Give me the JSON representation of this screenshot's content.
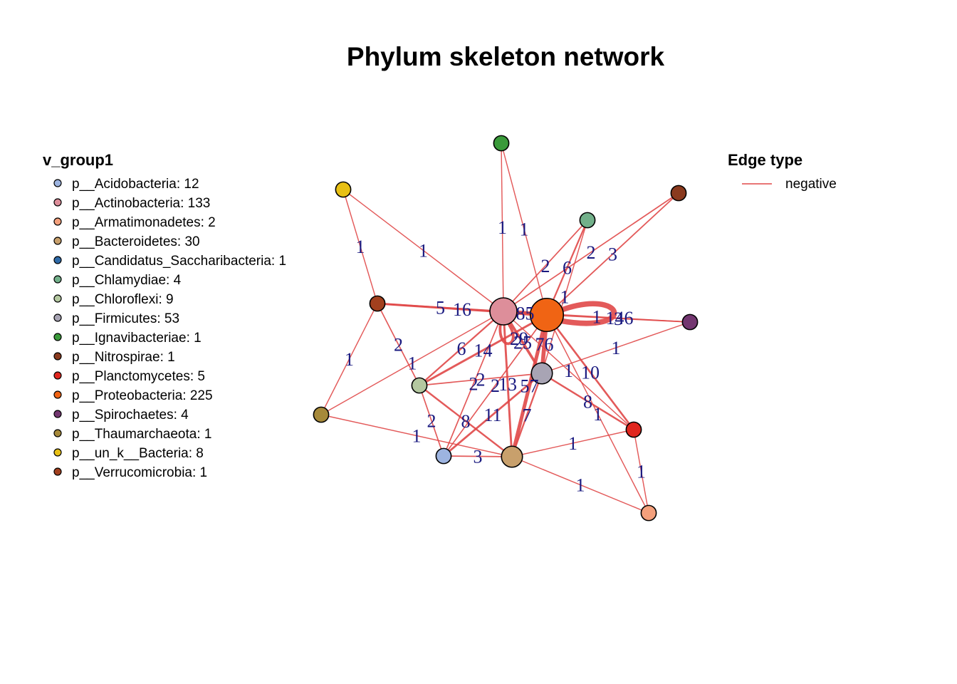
{
  "title": "Phylum skeleton network",
  "node_legend": {
    "title": "v_group1",
    "items": [
      {
        "label": "p__Acidobacteria: 12",
        "color": "#9db4e0"
      },
      {
        "label": "p__Actinobacteria: 133",
        "color": "#dd8e9a"
      },
      {
        "label": "p__Armatimonadetes: 2",
        "color": "#f4a07c"
      },
      {
        "label": "p__Bacteroidetes: 30",
        "color": "#c8a06c"
      },
      {
        "label": "p__Candidatus_Saccharibacteria: 1",
        "color": "#2e6aa8"
      },
      {
        "label": "p__Chlamydiae: 4",
        "color": "#72b08a"
      },
      {
        "label": "p__Chloroflexi: 9",
        "color": "#b4c8a0"
      },
      {
        "label": "p__Firmicutes: 53",
        "color": "#a8a4b4"
      },
      {
        "label": "p__Ignavibacteriae: 1",
        "color": "#3a9a3a"
      },
      {
        "label": "p__Nitrospirae: 1",
        "color": "#8a3a1e"
      },
      {
        "label": "p__Planctomycetes: 5",
        "color": "#e0261e"
      },
      {
        "label": "p__Proteobacteria: 225",
        "color": "#f06414"
      },
      {
        "label": "p__Spirochaetes: 4",
        "color": "#733670"
      },
      {
        "label": "p__Thaumarchaeota: 1",
        "color": "#a6893a"
      },
      {
        "label": "p__un_k__Bacteria: 8",
        "color": "#e8c014"
      },
      {
        "label": "p__Verrucomicrobia: 1",
        "color": "#a2401e"
      }
    ]
  },
  "edge_legend": {
    "title": "Edge type",
    "items": [
      {
        "label": "negative",
        "color": "#e04848"
      }
    ]
  },
  "nodes": [
    {
      "id": "Ignavibacteriae",
      "color": "#3a9a3a",
      "size": 1
    },
    {
      "id": "un_k__Bacteria",
      "color": "#e8c014",
      "size": 1
    },
    {
      "id": "Nitrospirae",
      "color": "#8a3a1e",
      "size": 1
    },
    {
      "id": "Chlamydiae",
      "color": "#72b08a",
      "size": 1
    },
    {
      "id": "Verrucomicrobia",
      "color": "#a2401e",
      "size": 1
    },
    {
      "id": "Actinobacteria",
      "color": "#dd8e9a",
      "size": 1.6
    },
    {
      "id": "Proteobacteria",
      "color": "#f06414",
      "size": 2
    },
    {
      "id": "Spirochaetes",
      "color": "#733670",
      "size": 1
    },
    {
      "id": "Firmicutes",
      "color": "#a8a4b4",
      "size": 1.2
    },
    {
      "id": "Chloroflexi",
      "color": "#b4c8a0",
      "size": 1
    },
    {
      "id": "Thaumarchaeota",
      "color": "#a6893a",
      "size": 1
    },
    {
      "id": "Planctomycetes",
      "color": "#e0261e",
      "size": 1
    },
    {
      "id": "Acidobacteria",
      "color": "#9db4e0",
      "size": 1
    },
    {
      "id": "Bacteroidetes",
      "color": "#c8a06c",
      "size": 1.2
    },
    {
      "id": "Armatimonadetes",
      "color": "#f4a07c",
      "size": 1
    }
  ],
  "edges": [
    {
      "source": "Ignavibacteriae",
      "target": "Proteobacteria",
      "weight": 1
    },
    {
      "source": "Ignavibacteriae",
      "target": "Actinobacteria",
      "weight": 1
    },
    {
      "source": "un_k__Bacteria",
      "target": "Verrucomicrobia",
      "weight": 1
    },
    {
      "source": "un_k__Bacteria",
      "target": "Actinobacteria",
      "weight": 1
    },
    {
      "source": "Nitrospirae",
      "target": "Proteobacteria",
      "weight": 3
    },
    {
      "source": "Nitrospirae",
      "target": "Actinobacteria",
      "weight": 2
    },
    {
      "source": "Chlamydiae",
      "target": "Proteobacteria",
      "weight": 6
    },
    {
      "source": "Chlamydiae",
      "target": "Actinobacteria",
      "weight": 2
    },
    {
      "source": "Chlamydiae",
      "target": "Firmicutes",
      "weight": 1
    },
    {
      "source": "Verrucomicrobia",
      "target": "Actinobacteria",
      "weight": 5
    },
    {
      "source": "Verrucomicrobia",
      "target": "Proteobacteria",
      "weight": 16
    },
    {
      "source": "Verrucomicrobia",
      "target": "Chloroflexi",
      "weight": 2
    },
    {
      "source": "Verrucomicrobia",
      "target": "Thaumarchaeota",
      "weight": 1
    },
    {
      "source": "Actinobacteria",
      "target": "Proteobacteria",
      "weight": 85
    },
    {
      "source": "Proteobacteria",
      "target": "Proteobacteria",
      "weight": 146
    },
    {
      "source": "Proteobacteria",
      "target": "Spirochaetes",
      "weight": 3
    },
    {
      "source": "Actinobacteria",
      "target": "Spirochaetes",
      "weight": 1
    },
    {
      "source": "Actinobacteria",
      "target": "Actinobacteria",
      "weight": 29
    },
    {
      "source": "Actinobacteria",
      "target": "Firmicutes",
      "weight": 25
    },
    {
      "source": "Proteobacteria",
      "target": "Firmicutes",
      "weight": 76
    },
    {
      "source": "Actinobacteria",
      "target": "Chloroflexi",
      "weight": 6
    },
    {
      "source": "Proteobacteria",
      "target": "Chloroflexi",
      "weight": 14
    },
    {
      "source": "Actinobacteria",
      "target": "Acidobacteria",
      "weight": 2
    },
    {
      "source": "Proteobacteria",
      "target": "Bacteroidetes",
      "weight": 57
    },
    {
      "source": "Actinobacteria",
      "target": "Bacteroidetes",
      "weight": 13
    },
    {
      "source": "Actinobacteria",
      "target": "Thaumarchaeota",
      "weight": 1
    },
    {
      "source": "Firmicutes",
      "target": "Spirochaetes",
      "weight": 1
    },
    {
      "source": "Firmicutes",
      "target": "Planctomycetes",
      "weight": 8
    },
    {
      "source": "Proteobacteria",
      "target": "Planctomycetes",
      "weight": 10
    },
    {
      "source": "Firmicutes",
      "target": "Chloroflexi",
      "weight": 2
    },
    {
      "source": "Firmicutes",
      "target": "Bacteroidetes",
      "weight": 7
    },
    {
      "source": "Firmicutes",
      "target": "Acidobacteria",
      "weight": 11
    },
    {
      "source": "Actinobacteria",
      "target": "Planctomycetes",
      "weight": 1
    },
    {
      "source": "Proteobacteria",
      "target": "Armatimonadetes",
      "weight": 1
    },
    {
      "source": "Chloroflexi",
      "target": "Acidobacteria",
      "weight": 2
    },
    {
      "source": "Chloroflexi",
      "target": "Bacteroidetes",
      "weight": 8
    },
    {
      "source": "Thaumarchaeota",
      "target": "Bacteroidetes",
      "weight": 1
    },
    {
      "source": "Acidobacteria",
      "target": "Bacteroidetes",
      "weight": 3
    },
    {
      "source": "Acidobacteria",
      "target": "Proteobacteria",
      "weight": 2
    },
    {
      "source": "Bacteroidetes",
      "target": "Planctomycetes",
      "weight": 1
    },
    {
      "source": "Bacteroidetes",
      "target": "Armatimonadetes",
      "weight": 1
    },
    {
      "source": "Planctomycetes",
      "target": "Armatimonadetes",
      "weight": 1
    }
  ]
}
